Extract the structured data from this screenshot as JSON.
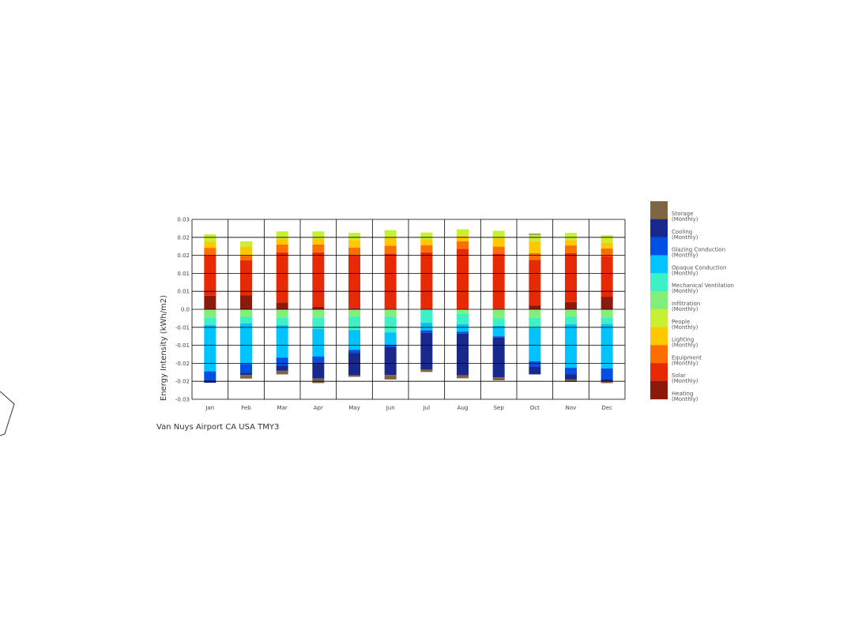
{
  "chart_data": {
    "type": "bar",
    "stacked": true,
    "ylabel": "Energy Intensity (kWh/m2)",
    "subtitle": "Van Nuys Airport CA USA TMY3",
    "ylim": [
      -0.03,
      0.03
    ],
    "ytick_labels": [
      "0.03",
      "0.02",
      "0.02",
      "0.01",
      "0.01",
      "0.0",
      "-0.01",
      "-0.01",
      "-0.02",
      "-0.02",
      "-0.03"
    ],
    "categories": [
      "Jan",
      "Feb",
      "Mar",
      "Apr",
      "May",
      "Jun",
      "Jul",
      "Aug",
      "Sep",
      "Oct",
      "Nov",
      "Dec"
    ],
    "series": [
      {
        "name": "Heating",
        "sub": "(Monthly)",
        "color": "#8b1a0b",
        "values": [
          0.0045,
          0.0046,
          0.0023,
          0.0008,
          0.0003,
          0.0002,
          0,
          0,
          0.0002,
          0.0013,
          0.0024,
          0.0042
        ]
      },
      {
        "name": "Solar",
        "sub": "(Monthly)",
        "color": "#e62a05",
        "values": [
          0.0135,
          0.0118,
          0.0167,
          0.0182,
          0.0177,
          0.0184,
          0.019,
          0.0202,
          0.0184,
          0.0152,
          0.0163,
          0.0136
        ]
      },
      {
        "name": "Equipment",
        "sub": "(Monthly)",
        "color": "#ff6e00",
        "values": [
          0.0025,
          0.0015,
          0.0026,
          0.0026,
          0.0026,
          0.0026,
          0.0024,
          0.0025,
          0.0023,
          0.0022,
          0.0026,
          0.0025
        ]
      },
      {
        "name": "Lighting",
        "sub": "(Monthly)",
        "color": "#ffc800",
        "values": [
          0.002,
          0.003,
          0.002,
          0.002,
          0.0025,
          0.0027,
          0.002,
          0.0018,
          0.0028,
          0.004,
          0.0018,
          0.002
        ]
      },
      {
        "name": "People",
        "sub": "(Monthly)",
        "color": "#c8f032",
        "values": [
          0.0025,
          0.0018,
          0.0024,
          0.0024,
          0.0024,
          0.0025,
          0.0022,
          0.0022,
          0.0025,
          0.0022,
          0.0024,
          0.0024
        ]
      },
      {
        "name": "Infiltration",
        "sub": "(Monthly)",
        "color": "#82f078",
        "values": [
          -0.0027,
          -0.0025,
          -0.0027,
          -0.0027,
          -0.0025,
          -0.0025,
          0,
          -0.0015,
          -0.003,
          -0.0028,
          -0.0025,
          -0.0027
        ]
      },
      {
        "name": "Mechanical Ventilation",
        "sub": "(Monthly)",
        "color": "#3cf0c8",
        "values": [
          -0.0025,
          -0.0022,
          -0.0026,
          -0.0038,
          -0.0044,
          -0.0052,
          -0.0045,
          -0.0035,
          -0.0025,
          -0.0035,
          -0.0025,
          -0.0022
        ]
      },
      {
        "name": "Opaque Conduction",
        "sub": "(Monthly)",
        "color": "#00c3ff",
        "values": [
          -0.0155,
          -0.0135,
          -0.0108,
          -0.0092,
          -0.0066,
          -0.0041,
          -0.0025,
          -0.0025,
          -0.0035,
          -0.011,
          -0.0145,
          -0.0148
        ]
      },
      {
        "name": "Glazing Conduction",
        "sub": "(Monthly)",
        "color": "#0050e6",
        "values": [
          -0.003,
          -0.003,
          -0.0027,
          -0.002,
          -0.001,
          -0.0008,
          -0.0008,
          -0.0006,
          -0.0004,
          -0.0018,
          -0.0022,
          -0.0035
        ]
      },
      {
        "name": "Cooling",
        "sub": "(Monthly)",
        "color": "#19288c",
        "values": [
          -0.0008,
          -0.0007,
          -0.0017,
          -0.0054,
          -0.0075,
          -0.0093,
          -0.0123,
          -0.0139,
          -0.0133,
          -0.0026,
          -0.0017,
          -0.0009
        ]
      },
      {
        "name": "Storage",
        "sub": "(Monthly)",
        "color": "#7f6542",
        "values": [
          0,
          -0.0012,
          -0.0012,
          -0.0015,
          -0.0005,
          -0.0015,
          -0.0008,
          -0.001,
          -0.001,
          0.0003,
          -0.0008,
          -0.0005
        ]
      }
    ]
  }
}
